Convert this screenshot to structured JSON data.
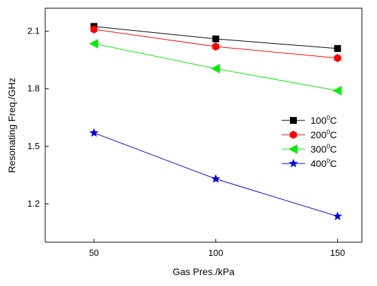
{
  "chart_data": {
    "type": "line",
    "xlabel": "Gas Pres./kPa",
    "ylabel": "Resonating Freq./GHz",
    "x": [
      50,
      100,
      150
    ],
    "xticks": [
      50,
      100,
      150
    ],
    "yticks": [
      1.2,
      1.5,
      1.8,
      2.1
    ],
    "xticklabels": [
      "50",
      "100",
      "150"
    ],
    "yticklabels": [
      "1.2",
      "1.5",
      "1.8",
      "2.1"
    ],
    "xlim": [
      30,
      160
    ],
    "ylim": [
      1.0,
      2.22
    ],
    "grid": false,
    "legend_position": "right",
    "series": [
      {
        "name": "100",
        "unit": "C",
        "sup": "0",
        "color": "#000000",
        "marker": "square",
        "values": [
          2.125,
          2.06,
          2.01
        ]
      },
      {
        "name": "200",
        "unit": "C",
        "sup": "0",
        "color": "#ff0000",
        "marker": "hexagon",
        "values": [
          2.11,
          2.02,
          1.96
        ]
      },
      {
        "name": "300",
        "unit": "C",
        "sup": "0",
        "color": "#00ee00",
        "marker": "triangle-left",
        "values": [
          2.035,
          1.905,
          1.79
        ]
      },
      {
        "name": "400",
        "unit": "C",
        "sup": "0",
        "color": "#0000ee",
        "marker": "star",
        "values": [
          1.57,
          1.33,
          1.135
        ]
      }
    ]
  }
}
